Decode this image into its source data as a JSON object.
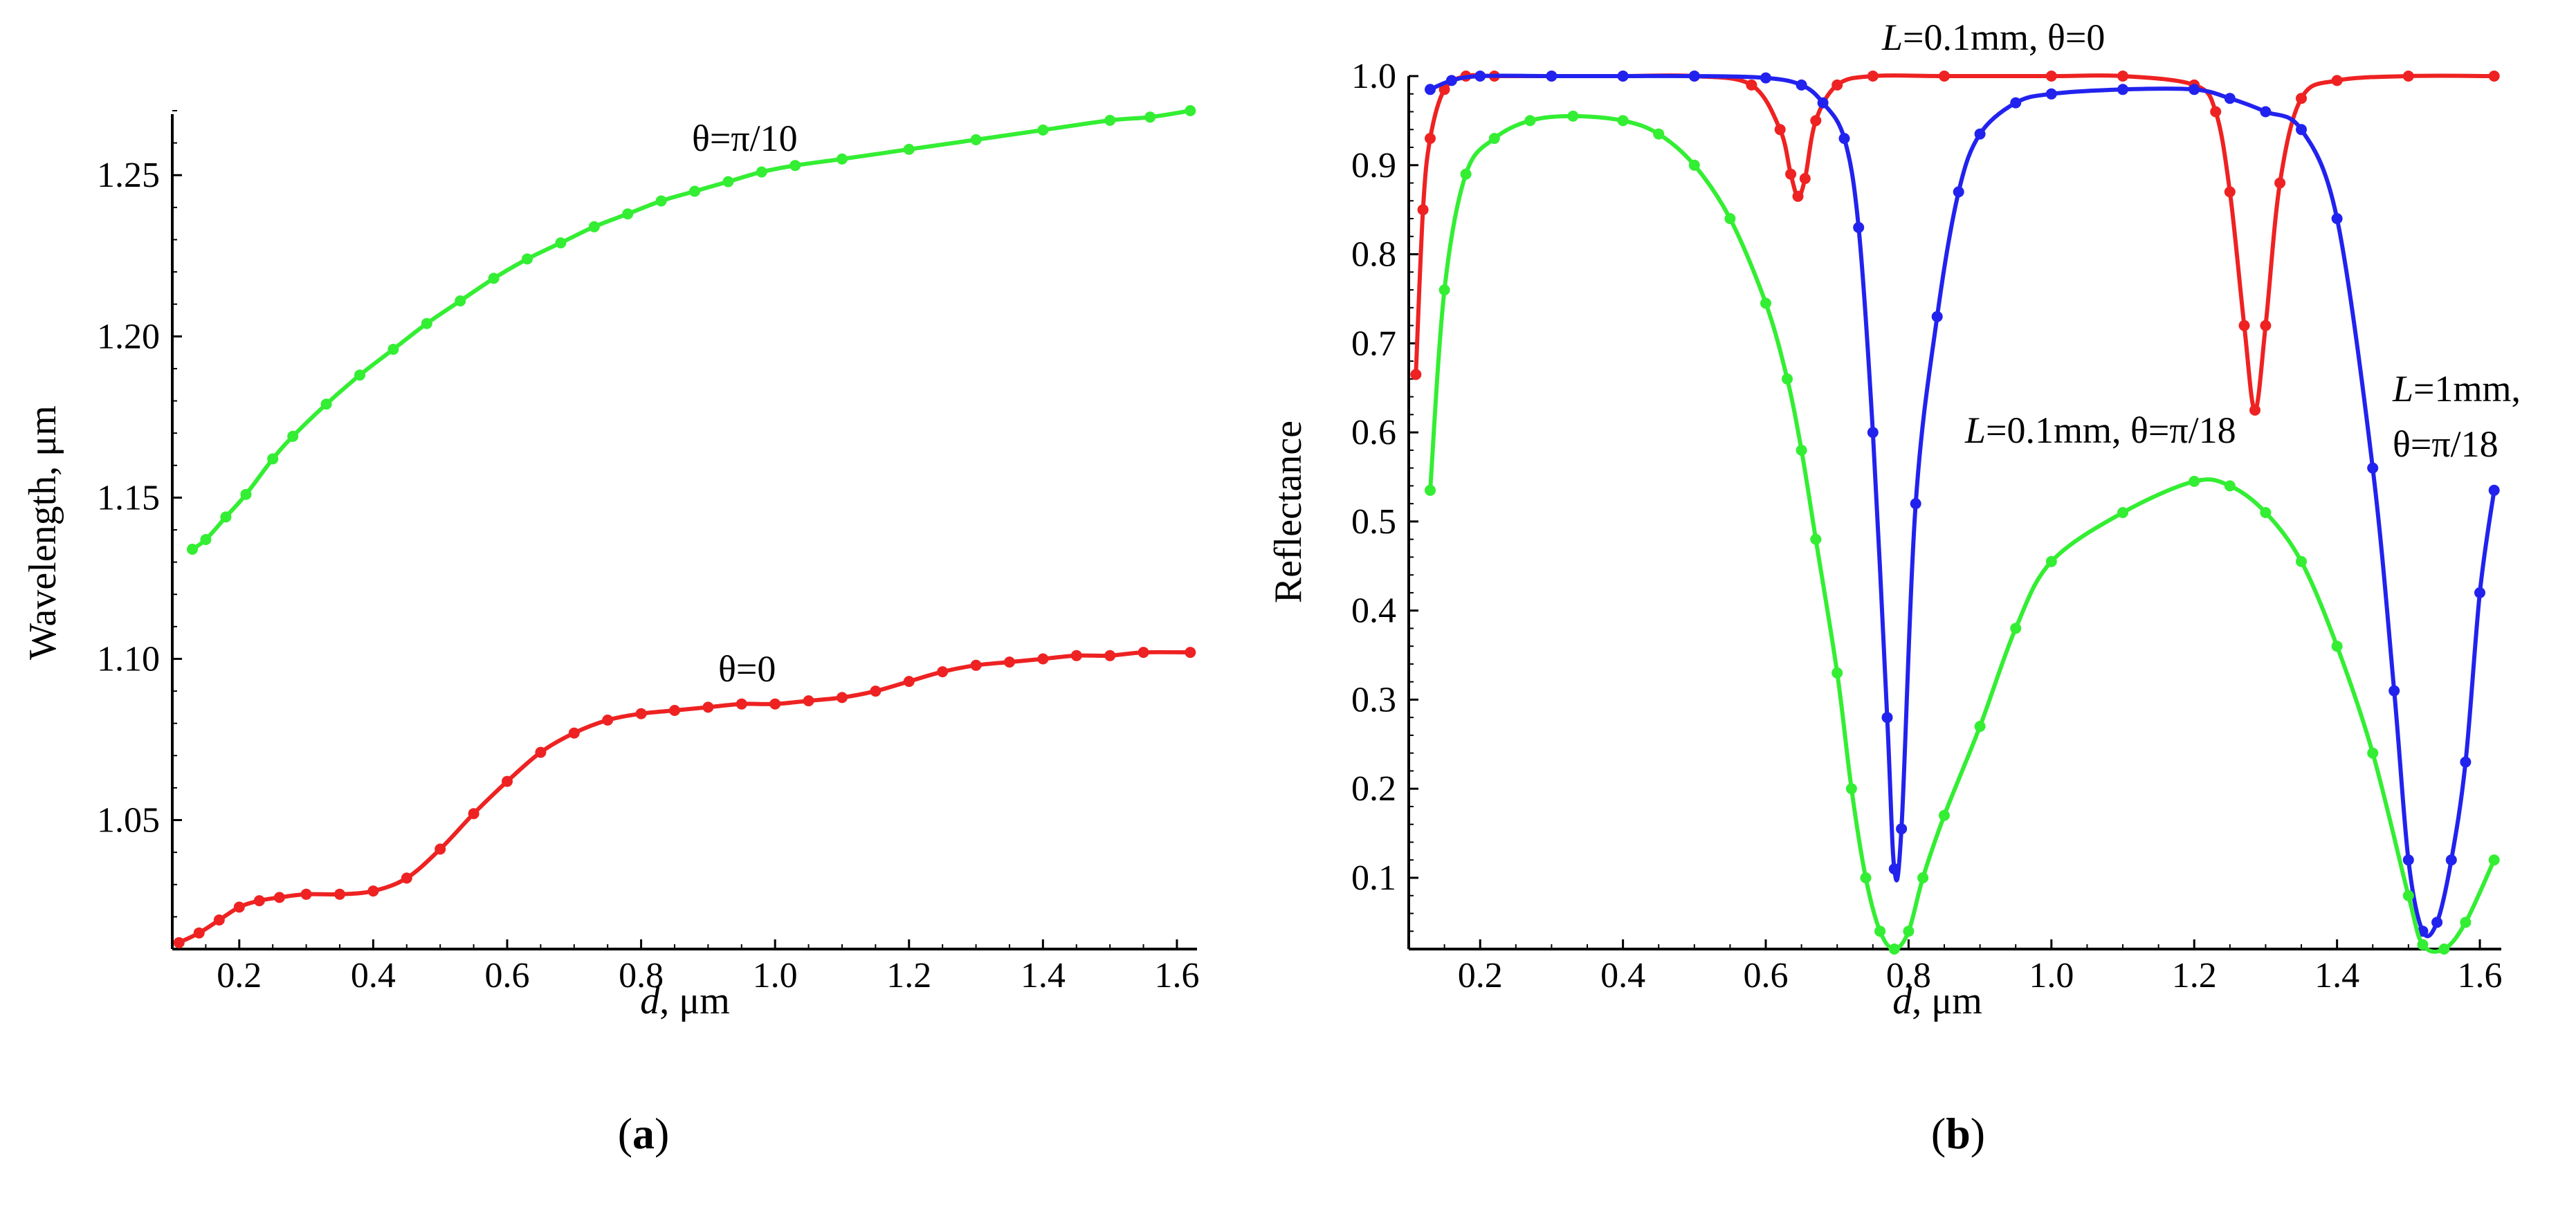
{
  "chart_data": [
    {
      "panel": "a",
      "type": "line",
      "xlabel_var": "d",
      "xlabel_unit": ", μm",
      "ylabel": "Wavelength, μm",
      "xlim": [
        0.1,
        1.63
      ],
      "ylim": [
        1.01,
        1.27
      ],
      "xticks": [
        0.2,
        0.4,
        0.6,
        0.8,
        1.0,
        1.2,
        1.4,
        1.6
      ],
      "xtick_labels": [
        "0.2",
        "0.4",
        "0.6",
        "0.8",
        "1.0",
        "1.2",
        "1.4",
        "1.6"
      ],
      "yticks": [
        1.05,
        1.1,
        1.15,
        1.2,
        1.25
      ],
      "ytick_labels": [
        "1.05",
        "1.10",
        "1.15",
        "1.20",
        "1.25"
      ],
      "series": [
        {
          "name": "θ=π/10",
          "color": "#33ee33",
          "x": [
            0.13,
            0.15,
            0.18,
            0.21,
            0.25,
            0.28,
            0.33,
            0.38,
            0.43,
            0.48,
            0.53,
            0.58,
            0.63,
            0.68,
            0.73,
            0.78,
            0.83,
            0.88,
            0.93,
            0.98,
            1.03,
            1.1,
            1.2,
            1.3,
            1.4,
            1.5,
            1.56,
            1.62
          ],
          "y": [
            1.134,
            1.137,
            1.144,
            1.151,
            1.162,
            1.169,
            1.179,
            1.188,
            1.196,
            1.204,
            1.211,
            1.218,
            1.224,
            1.229,
            1.234,
            1.238,
            1.242,
            1.245,
            1.248,
            1.251,
            1.253,
            1.255,
            1.258,
            1.261,
            1.264,
            1.267,
            1.268,
            1.27
          ]
        },
        {
          "name": "θ=0",
          "color": "#ee2222",
          "x": [
            0.11,
            0.14,
            0.17,
            0.2,
            0.23,
            0.26,
            0.3,
            0.35,
            0.4,
            0.45,
            0.5,
            0.55,
            0.6,
            0.65,
            0.7,
            0.75,
            0.8,
            0.85,
            0.9,
            0.95,
            1.0,
            1.05,
            1.1,
            1.15,
            1.2,
            1.25,
            1.3,
            1.35,
            1.4,
            1.45,
            1.5,
            1.55,
            1.62
          ],
          "y": [
            1.012,
            1.015,
            1.019,
            1.023,
            1.025,
            1.026,
            1.027,
            1.027,
            1.028,
            1.032,
            1.041,
            1.052,
            1.062,
            1.071,
            1.077,
            1.081,
            1.083,
            1.084,
            1.085,
            1.086,
            1.086,
            1.087,
            1.088,
            1.09,
            1.093,
            1.096,
            1.098,
            1.099,
            1.1,
            1.101,
            1.101,
            1.102,
            1.102
          ]
        }
      ],
      "annotations": [
        {
          "text": "θ=π/10"
        },
        {
          "text": "θ=0"
        }
      ]
    },
    {
      "panel": "b",
      "type": "line",
      "xlabel_var": "d",
      "xlabel_unit": ", μm",
      "ylabel": "Reflectance",
      "xlim": [
        0.1,
        1.63
      ],
      "ylim": [
        0.02,
        1.0
      ],
      "xticks": [
        0.2,
        0.4,
        0.6,
        0.8,
        1.0,
        1.2,
        1.4,
        1.6
      ],
      "xtick_labels": [
        "0.2",
        "0.4",
        "0.6",
        "0.8",
        "1.0",
        "1.2",
        "1.4",
        "1.6"
      ],
      "yticks": [
        0.1,
        0.2,
        0.3,
        0.4,
        0.5,
        0.6,
        0.7,
        0.8,
        0.9,
        1.0
      ],
      "ytick_labels": [
        "0.1",
        "0.2",
        "0.3",
        "0.4",
        "0.5",
        "0.6",
        "0.7",
        "0.8",
        "0.9",
        "1.0"
      ],
      "series": [
        {
          "name": "L=0.1mm, θ=0",
          "color": "#ee2222",
          "x": [
            0.11,
            0.12,
            0.13,
            0.15,
            0.18,
            0.22,
            0.3,
            0.4,
            0.5,
            0.58,
            0.62,
            0.635,
            0.645,
            0.655,
            0.67,
            0.7,
            0.75,
            0.85,
            1.0,
            1.1,
            1.2,
            1.23,
            1.25,
            1.27,
            1.285,
            1.3,
            1.32,
            1.35,
            1.4,
            1.5,
            1.62
          ],
          "y": [
            0.665,
            0.85,
            0.93,
            0.985,
            1.0,
            1.0,
            1.0,
            1.0,
            1.0,
            0.99,
            0.94,
            0.89,
            0.865,
            0.885,
            0.95,
            0.99,
            1.0,
            1.0,
            1.0,
            1.0,
            0.99,
            0.96,
            0.87,
            0.72,
            0.625,
            0.72,
            0.88,
            0.975,
            0.995,
            1.0,
            1.0
          ]
        },
        {
          "name": "L=1mm, θ=π/18",
          "color": "#2222ee",
          "x": [
            0.13,
            0.16,
            0.2,
            0.3,
            0.4,
            0.5,
            0.6,
            0.65,
            0.68,
            0.71,
            0.73,
            0.75,
            0.77,
            0.78,
            0.79,
            0.81,
            0.84,
            0.87,
            0.9,
            0.95,
            1.0,
            1.1,
            1.2,
            1.25,
            1.3,
            1.35,
            1.4,
            1.45,
            1.48,
            1.5,
            1.52,
            1.54,
            1.56,
            1.58,
            1.6,
            1.62
          ],
          "y": [
            0.985,
            0.995,
            1.0,
            1.0,
            1.0,
            1.0,
            0.998,
            0.99,
            0.97,
            0.93,
            0.83,
            0.6,
            0.28,
            0.11,
            0.155,
            0.52,
            0.73,
            0.87,
            0.935,
            0.97,
            0.98,
            0.985,
            0.985,
            0.975,
            0.96,
            0.94,
            0.84,
            0.56,
            0.31,
            0.12,
            0.04,
            0.05,
            0.12,
            0.23,
            0.42,
            0.535
          ]
        },
        {
          "name": "L=0.1mm, θ=π/18",
          "color": "#33ee33",
          "x": [
            0.13,
            0.15,
            0.18,
            0.22,
            0.27,
            0.33,
            0.4,
            0.45,
            0.5,
            0.55,
            0.6,
            0.63,
            0.65,
            0.67,
            0.7,
            0.72,
            0.74,
            0.76,
            0.78,
            0.8,
            0.82,
            0.85,
            0.9,
            0.95,
            1.0,
            1.1,
            1.2,
            1.25,
            1.3,
            1.35,
            1.4,
            1.45,
            1.5,
            1.52,
            1.55,
            1.58,
            1.62
          ],
          "y": [
            0.535,
            0.76,
            0.89,
            0.93,
            0.95,
            0.955,
            0.95,
            0.935,
            0.9,
            0.84,
            0.745,
            0.66,
            0.58,
            0.48,
            0.33,
            0.2,
            0.1,
            0.04,
            0.02,
            0.04,
            0.1,
            0.17,
            0.27,
            0.38,
            0.455,
            0.51,
            0.545,
            0.54,
            0.51,
            0.455,
            0.36,
            0.24,
            0.08,
            0.025,
            0.02,
            0.05,
            0.12
          ]
        }
      ],
      "annotations": [
        {
          "text_var": "L",
          "text_rest": "=0.1mm, θ=0"
        },
        {
          "text_var": "L",
          "text_rest": "=0.1mm, θ=π/18"
        },
        {
          "text_var": "L",
          "text_rest": "=1mm,"
        },
        {
          "text": "θ=π/18"
        }
      ]
    }
  ],
  "panel_labels": {
    "a": "a",
    "b": "b"
  }
}
